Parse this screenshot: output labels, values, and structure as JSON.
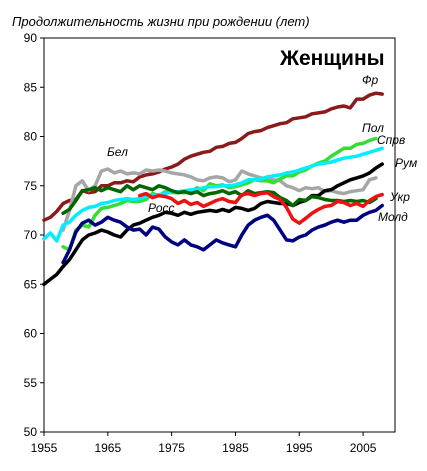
{
  "chart_data": {
    "type": "line",
    "title": "Женщины",
    "ylabel": "Продолжительность жизни при рождении (лет)",
    "xlabel": "",
    "xlim": [
      1955,
      2010
    ],
    "ylim": [
      50,
      90
    ],
    "xticks": [
      1955,
      1965,
      1975,
      1985,
      1995,
      2005
    ],
    "yticks": [
      50,
      55,
      60,
      65,
      70,
      75,
      80,
      85,
      90
    ],
    "grid": false,
    "legend": "none",
    "series": [
      {
        "name": "Фр",
        "color": "#8B1A1A",
        "x": [
          1955,
          1956,
          1957,
          1958,
          1959,
          1960,
          1961,
          1962,
          1963,
          1964,
          1965,
          1966,
          1967,
          1968,
          1969,
          1970,
          1971,
          1972,
          1973,
          1974,
          1975,
          1976,
          1977,
          1978,
          1979,
          1980,
          1981,
          1982,
          1983,
          1984,
          1985,
          1986,
          1987,
          1988,
          1989,
          1990,
          1991,
          1992,
          1993,
          1994,
          1995,
          1996,
          1997,
          1998,
          1999,
          2000,
          2001,
          2002,
          2003,
          2004,
          2005,
          2006,
          2007,
          2008
        ],
        "y": [
          71.5,
          71.8,
          72.4,
          73.2,
          73.5,
          73.6,
          74.5,
          74.3,
          74.4,
          75.0,
          75.0,
          75.3,
          75.3,
          75.5,
          75.4,
          75.9,
          76.1,
          76.2,
          76.4,
          76.7,
          76.9,
          77.2,
          77.7,
          78.0,
          78.2,
          78.4,
          78.5,
          78.9,
          79.0,
          79.3,
          79.4,
          79.8,
          80.3,
          80.5,
          80.6,
          80.9,
          81.1,
          81.3,
          81.4,
          81.8,
          81.9,
          82.0,
          82.3,
          82.4,
          82.5,
          82.8,
          83.0,
          83.1,
          82.9,
          83.8,
          83.8,
          84.2,
          84.4,
          84.3
        ]
      },
      {
        "name": "Бел",
        "color": "#A6A6A6",
        "x": [
          1958,
          1959,
          1960,
          1961,
          1962,
          1963,
          1964,
          1965,
          1966,
          1967,
          1968,
          1969,
          1970,
          1971,
          1972,
          1973,
          1974,
          1975,
          1976,
          1977,
          1978,
          1979,
          1980,
          1981,
          1982,
          1983,
          1984,
          1985,
          1986,
          1987,
          1988,
          1989,
          1990,
          1991,
          1992,
          1993,
          1994,
          1995,
          1996,
          1997,
          1998,
          1999,
          2000,
          2001,
          2002,
          2003,
          2004,
          2005,
          2006,
          2007
        ],
        "y": [
          70.5,
          72.5,
          75.0,
          75.5,
          74.5,
          75.0,
          76.5,
          76.7,
          76.3,
          76.5,
          76.2,
          76.3,
          76.2,
          76.6,
          76.5,
          76.6,
          76.5,
          76.3,
          76.2,
          76.1,
          75.9,
          75.6,
          75.5,
          75.8,
          75.9,
          75.8,
          75.4,
          75.6,
          76.5,
          76.2,
          76.0,
          75.8,
          75.7,
          75.6,
          75.5,
          75.0,
          74.8,
          74.5,
          74.8,
          74.7,
          74.8,
          74.4,
          74.5,
          74.3,
          74.2,
          74.4,
          74.5,
          74.6,
          75.6,
          75.8
        ]
      },
      {
        "name": "Пол",
        "color": "#33DD33",
        "x": [
          1958,
          1959,
          1960,
          1961,
          1962,
          1963,
          1964,
          1965,
          1966,
          1967,
          1968,
          1969,
          1970,
          1971,
          1972,
          1973,
          1974,
          1975,
          1976,
          1977,
          1978,
          1979,
          1980,
          1981,
          1982,
          1983,
          1984,
          1985,
          1986,
          1987,
          1988,
          1989,
          1990,
          1991,
          1992,
          1993,
          1994,
          1995,
          1996,
          1997,
          1998,
          1999,
          2000,
          2001,
          2002,
          2003,
          2004,
          2005,
          2006,
          2007
        ],
        "y": [
          68.8,
          68.5,
          70.5,
          71.0,
          70.8,
          72.0,
          72.7,
          72.8,
          73.0,
          73.2,
          73.5,
          73.4,
          73.4,
          73.6,
          74.2,
          74.0,
          74.4,
          74.3,
          74.3,
          74.3,
          74.4,
          74.8,
          74.5,
          75.2,
          75.0,
          75.1,
          74.8,
          74.9,
          75.1,
          75.3,
          75.6,
          75.5,
          75.5,
          75.3,
          75.7,
          76.0,
          76.0,
          76.4,
          76.6,
          77.0,
          77.3,
          77.5,
          78.0,
          78.4,
          78.8,
          78.8,
          79.2,
          79.3,
          79.6,
          79.8
        ]
      },
      {
        "name": "Спрв",
        "color": "#00EEFF",
        "x": [
          1955,
          1956,
          1957,
          1958,
          1959,
          1960,
          1961,
          1962,
          1963,
          1964,
          1965,
          1966,
          1967,
          1968,
          1969,
          1970,
          1971,
          1972,
          1973,
          1974,
          1975,
          1976,
          1977,
          1978,
          1979,
          1980,
          1981,
          1982,
          1983,
          1984,
          1985,
          1986,
          1987,
          1988,
          1989,
          1990,
          1991,
          1992,
          1993,
          1994,
          1995,
          1996,
          1997,
          1998,
          1999,
          2000,
          2001,
          2002,
          2003,
          2004,
          2005,
          2006,
          2007,
          2008
        ],
        "y": [
          69.6,
          70.2,
          69.4,
          71.0,
          71.3,
          72.0,
          72.5,
          72.8,
          72.9,
          73.2,
          73.3,
          73.5,
          73.6,
          73.7,
          73.6,
          73.7,
          73.9,
          74.0,
          74.1,
          74.2,
          74.4,
          74.4,
          74.5,
          74.6,
          74.6,
          74.8,
          74.9,
          74.9,
          75.0,
          75.0,
          75.1,
          75.3,
          75.6,
          75.6,
          75.7,
          75.9,
          76.0,
          76.1,
          76.3,
          76.4,
          76.6,
          76.8,
          77.0,
          77.2,
          77.3,
          77.4,
          77.6,
          77.8,
          77.9,
          78.0,
          78.2,
          78.4,
          78.6,
          78.8
        ]
      },
      {
        "name": "Рум",
        "color": "#000000",
        "x": [
          1955,
          1956,
          1957,
          1958,
          1959,
          1960,
          1961,
          1962,
          1963,
          1964,
          1965,
          1966,
          1967,
          1968,
          1969,
          1970,
          1971,
          1972,
          1973,
          1974,
          1975,
          1976,
          1977,
          1978,
          1979,
          1980,
          1981,
          1982,
          1983,
          1984,
          1985,
          1986,
          1987,
          1988,
          1989,
          1990,
          1991,
          1992,
          1993,
          1994,
          1995,
          1996,
          1997,
          1998,
          1999,
          2000,
          2001,
          2002,
          2003,
          2004,
          2005,
          2006,
          2007,
          2008
        ],
        "y": [
          65.0,
          65.5,
          66.0,
          66.8,
          67.5,
          68.5,
          69.5,
          70.0,
          70.2,
          70.5,
          70.3,
          70.0,
          69.8,
          70.5,
          71.0,
          71.2,
          71.5,
          71.8,
          72.0,
          72.3,
          72.2,
          72.0,
          72.3,
          72.1,
          72.3,
          72.4,
          72.5,
          72.4,
          72.6,
          72.4,
          72.8,
          72.7,
          72.5,
          72.7,
          73.2,
          73.4,
          73.3,
          73.2,
          73.2,
          73.0,
          73.3,
          73.5,
          74.0,
          74.0,
          74.5,
          74.6,
          75.0,
          75.3,
          75.6,
          75.8,
          76.0,
          76.3,
          76.8,
          77.2
        ]
      },
      {
        "name": "Росс",
        "color": "#006600",
        "x": [
          1958,
          1959,
          1960,
          1961,
          1962,
          1963,
          1964,
          1965,
          1966,
          1967,
          1968,
          1969,
          1970,
          1971,
          1972,
          1973,
          1974,
          1975,
          1976,
          1977,
          1978,
          1979,
          1980,
          1981,
          1982,
          1983,
          1984,
          1985,
          1986,
          1987,
          1988,
          1989,
          1990,
          1991,
          1992,
          1993,
          1994,
          1995,
          1996,
          1997,
          1998,
          1999,
          2000,
          2001,
          2002,
          2003,
          2004,
          2005,
          2006,
          2007
        ],
        "y": [
          72.2,
          72.6,
          73.5,
          74.5,
          74.6,
          74.8,
          74.5,
          74.8,
          74.6,
          74.4,
          75.0,
          74.6,
          75.0,
          74.8,
          74.6,
          75.0,
          74.8,
          74.5,
          74.3,
          74.4,
          74.2,
          74.4,
          74.0,
          74.2,
          74.3,
          74.5,
          74.2,
          74.4,
          74.0,
          74.5,
          74.2,
          74.3,
          74.4,
          74.3,
          73.8,
          73.5,
          73.0,
          73.6,
          73.5,
          73.9,
          73.8,
          73.6,
          73.5,
          73.5,
          73.4,
          73.5,
          73.4,
          73.5,
          73.3,
          73.7
        ]
      },
      {
        "name": "Укр",
        "color": "#EE1111",
        "x": [
          1970,
          1971,
          1972,
          1973,
          1974,
          1975,
          1976,
          1977,
          1978,
          1979,
          1980,
          1981,
          1982,
          1983,
          1984,
          1985,
          1986,
          1987,
          1988,
          1989,
          1990,
          1991,
          1992,
          1993,
          1994,
          1995,
          1996,
          1997,
          1998,
          1999,
          2000,
          2001,
          2002,
          2003,
          2004,
          2005,
          2006,
          2007,
          2008
        ],
        "y": [
          74.0,
          74.2,
          73.8,
          74.0,
          73.9,
          73.7,
          73.2,
          73.5,
          73.1,
          73.3,
          72.9,
          73.2,
          73.5,
          73.7,
          73.4,
          73.3,
          74.1,
          74.2,
          74.0,
          74.2,
          74.3,
          73.9,
          73.6,
          72.8,
          71.6,
          71.2,
          71.7,
          72.2,
          72.6,
          72.9,
          73.0,
          73.4,
          73.3,
          73.0,
          73.2,
          72.9,
          73.5,
          73.9,
          74.1
        ]
      },
      {
        "name": "Молд",
        "color": "#000080",
        "x": [
          1958,
          1959,
          1960,
          1961,
          1962,
          1963,
          1964,
          1965,
          1966,
          1967,
          1968,
          1969,
          1970,
          1971,
          1972,
          1973,
          1974,
          1975,
          1976,
          1977,
          1978,
          1979,
          1980,
          1981,
          1982,
          1983,
          1984,
          1985,
          1986,
          1987,
          1988,
          1989,
          1990,
          1991,
          1992,
          1993,
          1994,
          1995,
          1996,
          1997,
          1998,
          1999,
          2000,
          2001,
          2002,
          2003,
          2004,
          2005,
          2006,
          2007,
          2008
        ],
        "y": [
          67.2,
          68.5,
          70.3,
          71.2,
          71.5,
          71.0,
          71.3,
          71.8,
          71.5,
          71.3,
          70.8,
          70.5,
          70.6,
          70.0,
          70.8,
          70.6,
          69.8,
          69.3,
          69.0,
          69.5,
          69.0,
          68.8,
          68.5,
          69.0,
          69.5,
          69.2,
          69.0,
          68.8,
          70.0,
          71.0,
          71.5,
          71.8,
          72.0,
          71.5,
          70.5,
          69.5,
          69.4,
          69.8,
          70.0,
          70.5,
          70.8,
          71.0,
          71.3,
          71.5,
          71.3,
          71.5,
          71.5,
          72.0,
          72.3,
          72.5,
          73.0
        ]
      }
    ]
  }
}
